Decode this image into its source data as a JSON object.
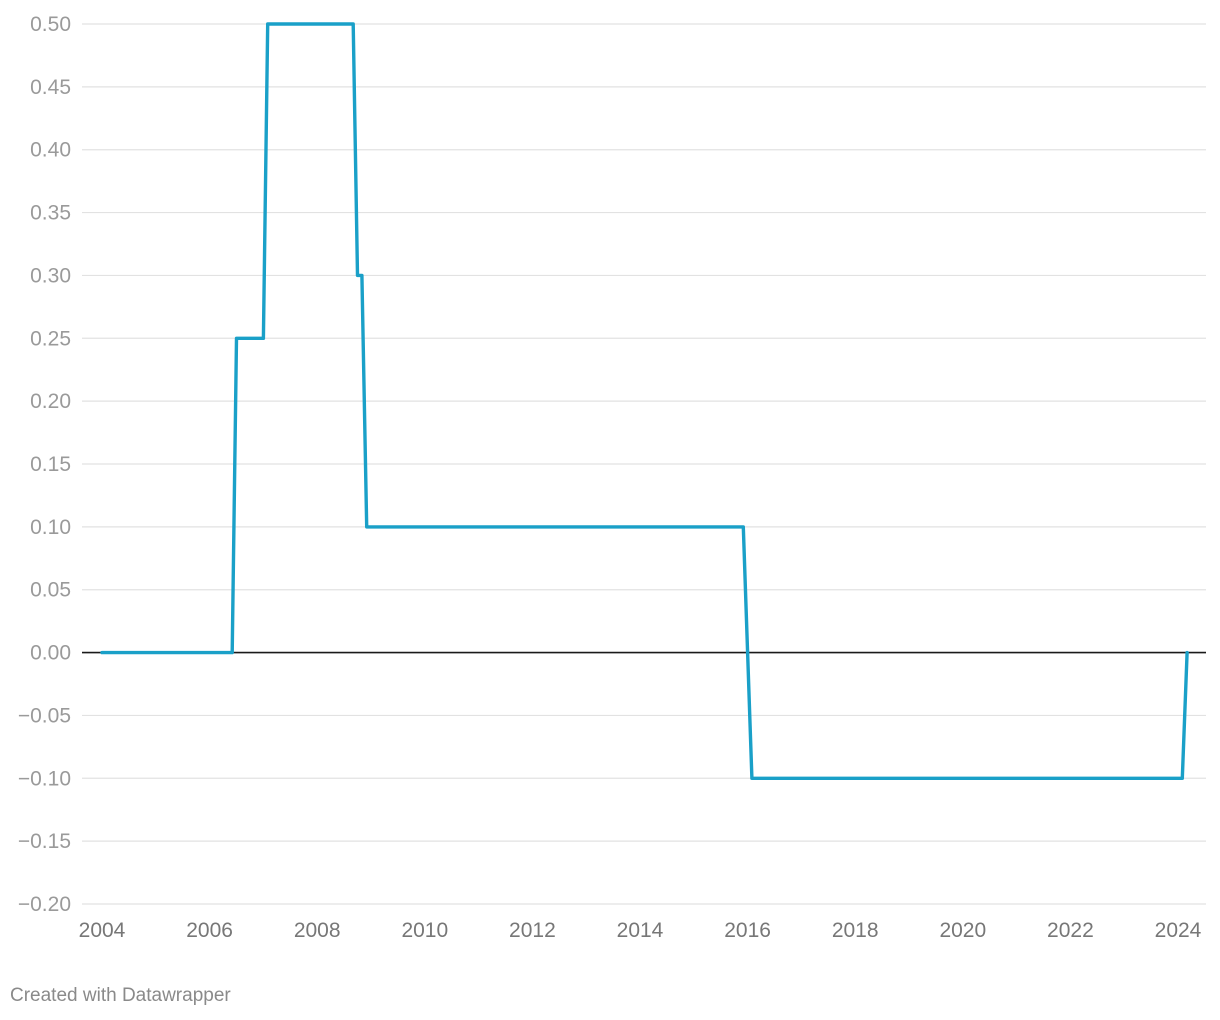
{
  "footer": {
    "credit": "Created with Datawrapper"
  },
  "colors": {
    "series": "#1aa0c8",
    "grid": "#e2e2e2",
    "zero_line": "#1a1a1a",
    "y_tick_text": "#9a9a9a",
    "x_tick_text": "#777777"
  },
  "chart_data": {
    "type": "line",
    "interpolation": "step",
    "title": "",
    "xlabel": "",
    "ylabel": "",
    "grid": true,
    "xlim": [
      2004,
      2024.2
    ],
    "ylim": [
      -0.2,
      0.5
    ],
    "x_ticks": [
      2004,
      2006,
      2008,
      2010,
      2012,
      2014,
      2016,
      2018,
      2020,
      2022,
      2024
    ],
    "x_tick_labels": [
      "2004",
      "2006",
      "2008",
      "2010",
      "2012",
      "2014",
      "2016",
      "2018",
      "2020",
      "2022",
      "2024"
    ],
    "y_ticks": [
      0.5,
      0.45,
      0.4,
      0.35,
      0.3,
      0.25,
      0.2,
      0.15,
      0.1,
      0.05,
      0.0,
      -0.05,
      -0.1,
      -0.15,
      -0.2
    ],
    "y_tick_labels": [
      "0.50",
      "0.45",
      "0.40",
      "0.35",
      "0.30",
      "0.25",
      "0.20",
      "0.15",
      "0.10",
      "0.05",
      "0.00",
      "−0.05",
      "−0.10",
      "−0.15",
      "−0.20"
    ],
    "series": [
      {
        "x": [
          2004.0,
          2006.42,
          2006.5,
          2007.0,
          2007.08,
          2008.67,
          2008.75,
          2008.83,
          2008.92,
          2015.92,
          2016.08,
          2024.08,
          2024.17
        ],
        "values": [
          0.0,
          0.0,
          0.25,
          0.25,
          0.5,
          0.5,
          0.3,
          0.3,
          0.1,
          0.1,
          -0.1,
          -0.1,
          0.0
        ]
      }
    ]
  }
}
